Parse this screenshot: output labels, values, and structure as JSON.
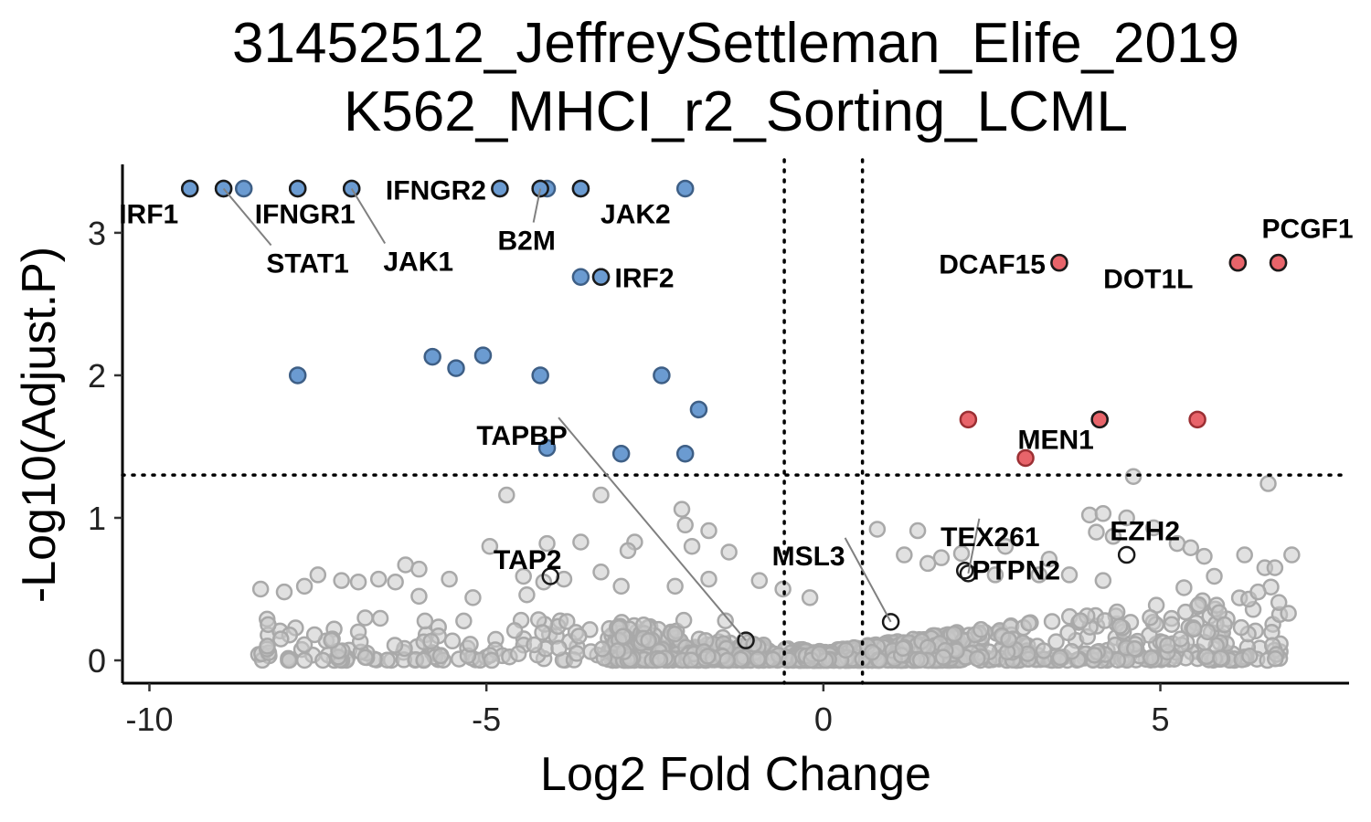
{
  "chart_data": {
    "type": "scatter",
    "title_lines": [
      "31452512_JeffreySettleman_Elife_2019",
      "K562_MHCI_r2_Sorting_LCML"
    ],
    "xlabel": "Log2 Fold Change",
    "ylabel": "-Log10(Adjust.P)",
    "xlim": [
      -10.4,
      7.8
    ],
    "ylim": [
      -0.16,
      3.48
    ],
    "x_ticks": [
      -10,
      -5,
      0,
      5
    ],
    "x_tick_labels": [
      "-10",
      "-5",
      "0",
      "5"
    ],
    "y_ticks": [
      0,
      1,
      2,
      3
    ],
    "y_tick_labels": [
      "0",
      "1",
      "2",
      "3"
    ],
    "threshold_lines": {
      "x": [
        -0.58,
        0.58
      ],
      "y": 1.3
    },
    "grid": false,
    "colors": {
      "down": "#6b9bd1",
      "down_stroke": "#3e5f86",
      "up": "#e8646a",
      "up_stroke": "#9b2f33",
      "ns": "#c8c8c8",
      "ns_stroke": "#a9a9a9",
      "highlight_stroke": "#1a1a1a",
      "leader": "#808080"
    },
    "significant_down": [
      {
        "x": -9.4,
        "y": 3.31
      },
      {
        "x": -8.9,
        "y": 3.31
      },
      {
        "x": -8.6,
        "y": 3.31
      },
      {
        "x": -7.8,
        "y": 3.31
      },
      {
        "x": -7.0,
        "y": 3.31
      },
      {
        "x": -4.8,
        "y": 3.31
      },
      {
        "x": -4.2,
        "y": 3.31
      },
      {
        "x": -4.1,
        "y": 3.31
      },
      {
        "x": -3.6,
        "y": 3.31
      },
      {
        "x": -2.05,
        "y": 3.31
      },
      {
        "x": -3.6,
        "y": 2.69
      },
      {
        "x": -3.3,
        "y": 2.69
      },
      {
        "x": -7.8,
        "y": 2.0
      },
      {
        "x": -5.8,
        "y": 2.13
      },
      {
        "x": -5.45,
        "y": 2.05
      },
      {
        "x": -5.05,
        "y": 2.14
      },
      {
        "x": -4.2,
        "y": 2.0
      },
      {
        "x": -2.4,
        "y": 2.0
      },
      {
        "x": -1.85,
        "y": 1.76
      },
      {
        "x": -4.1,
        "y": 1.49
      },
      {
        "x": -3.0,
        "y": 1.45
      },
      {
        "x": -2.05,
        "y": 1.45
      }
    ],
    "significant_up": [
      {
        "x": 3.5,
        "y": 2.79
      },
      {
        "x": 6.15,
        "y": 2.79
      },
      {
        "x": 6.75,
        "y": 2.79
      },
      {
        "x": 2.15,
        "y": 1.69
      },
      {
        "x": 4.1,
        "y": 1.69
      },
      {
        "x": 5.55,
        "y": 1.69
      },
      {
        "x": 3.0,
        "y": 1.42
      }
    ],
    "not_significant_sample": [
      {
        "x": -4.7,
        "y": 1.16
      },
      {
        "x": -3.3,
        "y": 1.16
      },
      {
        "x": -2.1,
        "y": 1.06
      },
      {
        "x": -1.7,
        "y": 0.91
      },
      {
        "x": -2.05,
        "y": 0.95
      },
      {
        "x": -4.95,
        "y": 0.8
      },
      {
        "x": -4.1,
        "y": 0.82
      },
      {
        "x": -3.6,
        "y": 0.83
      },
      {
        "x": -2.8,
        "y": 0.83
      },
      {
        "x": -2.9,
        "y": 0.77
      },
      {
        "x": -1.95,
        "y": 0.8
      },
      {
        "x": -1.4,
        "y": 0.76
      },
      {
        "x": -6.2,
        "y": 0.67
      },
      {
        "x": -6.0,
        "y": 0.64
      },
      {
        "x": -7.5,
        "y": 0.6
      },
      {
        "x": -7.15,
        "y": 0.56
      },
      {
        "x": -6.9,
        "y": 0.55
      },
      {
        "x": -6.6,
        "y": 0.57
      },
      {
        "x": -6.35,
        "y": 0.55
      },
      {
        "x": -5.55,
        "y": 0.57
      },
      {
        "x": -4.45,
        "y": 0.59
      },
      {
        "x": -4.15,
        "y": 0.55
      },
      {
        "x": -3.85,
        "y": 0.57
      },
      {
        "x": -3.3,
        "y": 0.62
      },
      {
        "x": -8.35,
        "y": 0.5
      },
      {
        "x": -8.0,
        "y": 0.48
      },
      {
        "x": -7.7,
        "y": 0.52
      },
      {
        "x": -6.0,
        "y": 0.45
      },
      {
        "x": -5.2,
        "y": 0.44
      },
      {
        "x": -4.4,
        "y": 0.46
      },
      {
        "x": -3.0,
        "y": 0.52
      },
      {
        "x": -2.2,
        "y": 0.52
      },
      {
        "x": -1.7,
        "y": 0.57
      },
      {
        "x": -0.95,
        "y": 0.56
      },
      {
        "x": -0.6,
        "y": 0.5
      },
      {
        "x": -0.2,
        "y": 0.44
      },
      {
        "x": 0.8,
        "y": 0.92
      },
      {
        "x": 1.4,
        "y": 0.91
      },
      {
        "x": 1.75,
        "y": 0.72
      },
      {
        "x": 1.55,
        "y": 0.68
      },
      {
        "x": 1.2,
        "y": 0.74
      },
      {
        "x": 2.05,
        "y": 0.75
      },
      {
        "x": 2.7,
        "y": 0.8
      },
      {
        "x": 3.35,
        "y": 0.71
      },
      {
        "x": 3.95,
        "y": 1.02
      },
      {
        "x": 4.15,
        "y": 1.03
      },
      {
        "x": 4.05,
        "y": 0.9
      },
      {
        "x": 4.3,
        "y": 0.87
      },
      {
        "x": 4.5,
        "y": 1.0
      },
      {
        "x": 4.9,
        "y": 0.93
      },
      {
        "x": 5.25,
        "y": 0.82
      },
      {
        "x": 5.45,
        "y": 0.79
      },
      {
        "x": 5.65,
        "y": 0.73
      },
      {
        "x": 6.25,
        "y": 0.74
      },
      {
        "x": 6.95,
        "y": 0.74
      },
      {
        "x": 6.55,
        "y": 0.65
      },
      {
        "x": 6.7,
        "y": 0.65
      },
      {
        "x": 6.45,
        "y": 0.48
      },
      {
        "x": 5.8,
        "y": 0.59
      },
      {
        "x": 5.35,
        "y": 0.51
      },
      {
        "x": 6.6,
        "y": 1.24
      },
      {
        "x": 4.6,
        "y": 1.29
      },
      {
        "x": 4.15,
        "y": 0.56
      },
      {
        "x": 3.65,
        "y": 0.6
      },
      {
        "x": 3.2,
        "y": 0.6
      },
      {
        "x": 2.55,
        "y": 0.6
      },
      {
        "x": 6.9,
        "y": 0.33
      },
      {
        "x": 6.2,
        "y": 0.23
      },
      {
        "x": 5.95,
        "y": 0.25
      },
      {
        "x": 5.7,
        "y": 0.2
      },
      {
        "x": 5.5,
        "y": 0.22
      },
      {
        "x": 5.3,
        "y": 0.15
      },
      {
        "x": 4.85,
        "y": 0.3
      },
      {
        "x": 4.4,
        "y": 0.24
      },
      {
        "x": -8.25,
        "y": 0.1
      },
      {
        "x": -8.05,
        "y": 0.15
      },
      {
        "x": -7.7,
        "y": 0.11
      },
      {
        "x": -7.3,
        "y": 0.14
      },
      {
        "x": -7.55,
        "y": 0.18
      },
      {
        "x": -6.9,
        "y": 0.2
      }
    ],
    "highlighted_genes": [
      {
        "label": "IRF1",
        "x": -9.4,
        "y": 3.31,
        "color": "down"
      },
      {
        "label": "STAT1",
        "x": -8.9,
        "y": 3.31,
        "color": "down"
      },
      {
        "label": "IFNGR1",
        "x": -7.8,
        "y": 3.31,
        "color": "down"
      },
      {
        "label": "JAK1",
        "x": -7.0,
        "y": 3.31,
        "color": "down"
      },
      {
        "label": "IFNGR2",
        "x": -4.8,
        "y": 3.31,
        "color": "down"
      },
      {
        "label": "B2M",
        "x": -4.2,
        "y": 3.31,
        "color": "down"
      },
      {
        "label": "JAK2",
        "x": -3.6,
        "y": 3.31,
        "color": "down"
      },
      {
        "label": "IRF2",
        "x": -3.3,
        "y": 2.69,
        "color": "down"
      },
      {
        "label": "TAPBP",
        "x": -1.15,
        "y": 0.14,
        "color": "ns"
      },
      {
        "label": "TAP2",
        "x": -4.05,
        "y": 0.59,
        "color": "ns"
      },
      {
        "label": "MSL3",
        "x": 1.0,
        "y": 0.27,
        "color": "ns"
      },
      {
        "label": "DCAF15",
        "x": 3.5,
        "y": 2.79,
        "color": "up"
      },
      {
        "label": "PCGF1",
        "x": 6.75,
        "y": 2.79,
        "color": "up"
      },
      {
        "label": "DOT1L",
        "x": 6.15,
        "y": 2.79,
        "color": "up"
      },
      {
        "label": "MEN1",
        "x": 4.1,
        "y": 1.69,
        "color": "up"
      },
      {
        "label": "TEX261",
        "x": 2.15,
        "y": 0.61,
        "color": "ns"
      },
      {
        "label": "PTPN2",
        "x": 2.1,
        "y": 0.63,
        "color": "ns"
      },
      {
        "label": "EZH2",
        "x": 4.5,
        "y": 0.74,
        "color": "ns"
      }
    ]
  }
}
